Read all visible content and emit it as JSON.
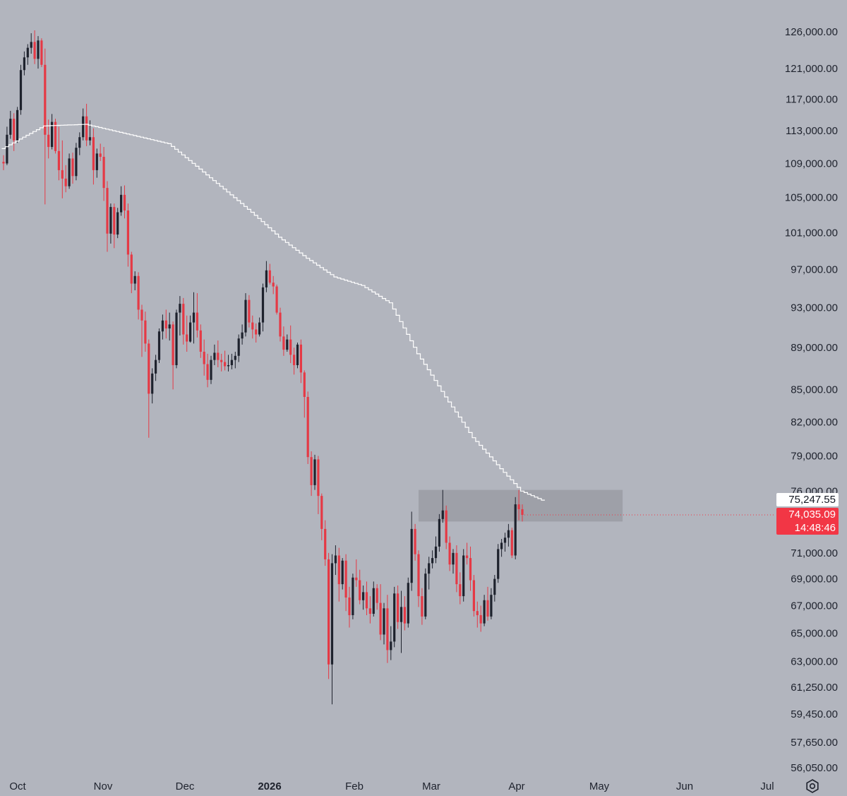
{
  "chart_data": {
    "type": "candlestick",
    "price_axis_labels": [
      "126,000.00",
      "121,000.00",
      "117,000.00",
      "113,000.00",
      "109,000.00",
      "105,000.00",
      "101,000.00",
      "97,000.00",
      "93,000.00",
      "89,000.00",
      "85,000.00",
      "82,000.00",
      "79,000.00",
      "76,000.00",
      "71,000.00",
      "69,000.00",
      "67,000.00",
      "65,000.00",
      "63,000.00",
      "61,250.00",
      "59,450.00",
      "57,650.00",
      "56,050.00"
    ],
    "price_axis_values": [
      126000,
      121000,
      117000,
      113000,
      109000,
      105000,
      101000,
      97000,
      93000,
      89000,
      85000,
      82000,
      79000,
      76000,
      71000,
      69000,
      67000,
      65000,
      63000,
      61250,
      59450,
      57650,
      56050
    ],
    "time_axis_labels": [
      "Oct",
      "Nov",
      "Dec",
      "2026",
      "Feb",
      "Mar",
      "Apr",
      "May",
      "Jun",
      "Jul"
    ],
    "time_axis_bold": [
      "2026"
    ],
    "x_range": [
      "2025-10-01",
      "2026-07-01"
    ],
    "y_scale": "log",
    "candles": [
      {
        "o": 109200,
        "h": 110000,
        "l": 108200,
        "c": 109000
      },
      {
        "o": 109000,
        "h": 113500,
        "l": 108800,
        "c": 112500
      },
      {
        "o": 112500,
        "h": 115500,
        "l": 112000,
        "c": 114500
      },
      {
        "o": 114500,
        "h": 115200,
        "l": 110500,
        "c": 111800
      },
      {
        "o": 111800,
        "h": 116000,
        "l": 111500,
        "c": 115600
      },
      {
        "o": 115600,
        "h": 121500,
        "l": 115000,
        "c": 120800
      },
      {
        "o": 120800,
        "h": 123300,
        "l": 120100,
        "c": 122500
      },
      {
        "o": 122500,
        "h": 124300,
        "l": 121500,
        "c": 123800
      },
      {
        "o": 123800,
        "h": 125800,
        "l": 123000,
        "c": 124600
      },
      {
        "o": 124600,
        "h": 126200,
        "l": 121600,
        "c": 122300
      },
      {
        "o": 122300,
        "h": 125400,
        "l": 121000,
        "c": 124800
      },
      {
        "o": 124800,
        "h": 125100,
        "l": 121200,
        "c": 121500
      },
      {
        "o": 121500,
        "h": 123700,
        "l": 104200,
        "c": 112500
      },
      {
        "o": 112500,
        "h": 114400,
        "l": 109600,
        "c": 111000
      },
      {
        "o": 111000,
        "h": 115100,
        "l": 110700,
        "c": 114100
      },
      {
        "o": 114100,
        "h": 114500,
        "l": 110200,
        "c": 110500
      },
      {
        "o": 110500,
        "h": 113500,
        "l": 107000,
        "c": 108200
      },
      {
        "o": 108200,
        "h": 111800,
        "l": 104900,
        "c": 107200
      },
      {
        "o": 107200,
        "h": 108800,
        "l": 105600,
        "c": 106300
      },
      {
        "o": 106300,
        "h": 110200,
        "l": 106000,
        "c": 109600
      },
      {
        "o": 109600,
        "h": 110300,
        "l": 106600,
        "c": 107500
      },
      {
        "o": 107500,
        "h": 111500,
        "l": 107000,
        "c": 110900
      },
      {
        "o": 110900,
        "h": 112800,
        "l": 110000,
        "c": 112200
      },
      {
        "o": 112200,
        "h": 115800,
        "l": 111800,
        "c": 114800
      },
      {
        "o": 114800,
        "h": 116400,
        "l": 111100,
        "c": 111800
      },
      {
        "o": 111800,
        "h": 114300,
        "l": 111200,
        "c": 112200
      },
      {
        "o": 112200,
        "h": 113300,
        "l": 106500,
        "c": 108200
      },
      {
        "o": 108200,
        "h": 110800,
        "l": 107300,
        "c": 110200
      },
      {
        "o": 110200,
        "h": 111400,
        "l": 109300,
        "c": 109800
      },
      {
        "o": 109800,
        "h": 111000,
        "l": 104600,
        "c": 106100
      },
      {
        "o": 106100,
        "h": 106900,
        "l": 98900,
        "c": 100900
      },
      {
        "o": 100900,
        "h": 104300,
        "l": 99800,
        "c": 103900
      },
      {
        "o": 103900,
        "h": 104300,
        "l": 99300,
        "c": 100800
      },
      {
        "o": 100800,
        "h": 103800,
        "l": 100400,
        "c": 103300
      },
      {
        "o": 103300,
        "h": 106300,
        "l": 102900,
        "c": 105300
      },
      {
        "o": 105300,
        "h": 106400,
        "l": 102600,
        "c": 103500
      },
      {
        "o": 103500,
        "h": 104300,
        "l": 97300,
        "c": 98600
      },
      {
        "o": 98600,
        "h": 98900,
        "l": 94500,
        "c": 95500
      },
      {
        "o": 95500,
        "h": 96800,
        "l": 94800,
        "c": 96300
      },
      {
        "o": 96300,
        "h": 96700,
        "l": 91800,
        "c": 92800
      },
      {
        "o": 92800,
        "h": 93300,
        "l": 88100,
        "c": 91700
      },
      {
        "o": 91700,
        "h": 92600,
        "l": 88600,
        "c": 89400
      },
      {
        "o": 89400,
        "h": 89800,
        "l": 80600,
        "c": 84600
      },
      {
        "o": 84600,
        "h": 87000,
        "l": 83700,
        "c": 86500
      },
      {
        "o": 86500,
        "h": 88300,
        "l": 85800,
        "c": 87800
      },
      {
        "o": 87800,
        "h": 90900,
        "l": 87500,
        "c": 90600
      },
      {
        "o": 90600,
        "h": 92300,
        "l": 89800,
        "c": 91700
      },
      {
        "o": 91700,
        "h": 92800,
        "l": 89900,
        "c": 90900
      },
      {
        "o": 90900,
        "h": 92500,
        "l": 89700,
        "c": 91300
      },
      {
        "o": 91300,
        "h": 91600,
        "l": 85000,
        "c": 87300
      },
      {
        "o": 87300,
        "h": 92800,
        "l": 87000,
        "c": 92500
      },
      {
        "o": 92500,
        "h": 94200,
        "l": 90200,
        "c": 93400
      },
      {
        "o": 93400,
        "h": 94000,
        "l": 89300,
        "c": 90300
      },
      {
        "o": 90300,
        "h": 92200,
        "l": 88600,
        "c": 89600
      },
      {
        "o": 89600,
        "h": 92200,
        "l": 89500,
        "c": 91500
      },
      {
        "o": 91500,
        "h": 94600,
        "l": 89400,
        "c": 92500
      },
      {
        "o": 92500,
        "h": 94500,
        "l": 90000,
        "c": 90700
      },
      {
        "o": 90700,
        "h": 91300,
        "l": 88000,
        "c": 88600
      },
      {
        "o": 88600,
        "h": 89800,
        "l": 86300,
        "c": 87400
      },
      {
        "o": 87400,
        "h": 88400,
        "l": 85200,
        "c": 85900
      },
      {
        "o": 85900,
        "h": 88200,
        "l": 85500,
        "c": 87800
      },
      {
        "o": 87800,
        "h": 89300,
        "l": 87300,
        "c": 88500
      },
      {
        "o": 88500,
        "h": 89700,
        "l": 87100,
        "c": 87800
      },
      {
        "o": 87800,
        "h": 88400,
        "l": 86700,
        "c": 87600
      },
      {
        "o": 87600,
        "h": 88700,
        "l": 86800,
        "c": 87200
      },
      {
        "o": 87200,
        "h": 88300,
        "l": 86700,
        "c": 87300
      },
      {
        "o": 87300,
        "h": 88400,
        "l": 86900,
        "c": 87800
      },
      {
        "o": 87800,
        "h": 88600,
        "l": 87000,
        "c": 88200
      },
      {
        "o": 88200,
        "h": 90300,
        "l": 87600,
        "c": 89900
      },
      {
        "o": 89900,
        "h": 91300,
        "l": 89300,
        "c": 90500
      },
      {
        "o": 90500,
        "h": 94500,
        "l": 90100,
        "c": 93800
      },
      {
        "o": 93800,
        "h": 94300,
        "l": 91000,
        "c": 91500
      },
      {
        "o": 91500,
        "h": 92200,
        "l": 89900,
        "c": 90800
      },
      {
        "o": 90800,
        "h": 91400,
        "l": 89500,
        "c": 90300
      },
      {
        "o": 90300,
        "h": 92000,
        "l": 90100,
        "c": 91500
      },
      {
        "o": 91500,
        "h": 95500,
        "l": 90600,
        "c": 95100
      },
      {
        "o": 95100,
        "h": 97900,
        "l": 94600,
        "c": 96900
      },
      {
        "o": 96900,
        "h": 97600,
        "l": 95400,
        "c": 95600
      },
      {
        "o": 95600,
        "h": 96300,
        "l": 94400,
        "c": 95200
      },
      {
        "o": 95200,
        "h": 95400,
        "l": 92300,
        "c": 92500
      },
      {
        "o": 92500,
        "h": 93000,
        "l": 89600,
        "c": 90100
      },
      {
        "o": 90100,
        "h": 91100,
        "l": 88200,
        "c": 88800
      },
      {
        "o": 88800,
        "h": 90300,
        "l": 88600,
        "c": 89800
      },
      {
        "o": 89800,
        "h": 91200,
        "l": 87500,
        "c": 88300
      },
      {
        "o": 88300,
        "h": 89000,
        "l": 86400,
        "c": 87300
      },
      {
        "o": 87300,
        "h": 89500,
        "l": 87000,
        "c": 89300
      },
      {
        "o": 89300,
        "h": 89800,
        "l": 85600,
        "c": 86600
      },
      {
        "o": 86600,
        "h": 86800,
        "l": 82400,
        "c": 84300
      },
      {
        "o": 84300,
        "h": 84800,
        "l": 78300,
        "c": 78900
      },
      {
        "o": 78900,
        "h": 79400,
        "l": 75600,
        "c": 76500
      },
      {
        "o": 76500,
        "h": 79100,
        "l": 76100,
        "c": 78700
      },
      {
        "o": 78700,
        "h": 79000,
        "l": 74100,
        "c": 75600
      },
      {
        "o": 75600,
        "h": 75800,
        "l": 72000,
        "c": 72900
      },
      {
        "o": 72900,
        "h": 73600,
        "l": 70000,
        "c": 70500
      },
      {
        "o": 70500,
        "h": 71000,
        "l": 61800,
        "c": 62800
      },
      {
        "o": 62800,
        "h": 70900,
        "l": 60100,
        "c": 70200
      },
      {
        "o": 70200,
        "h": 71600,
        "l": 69300,
        "c": 70800
      },
      {
        "o": 70800,
        "h": 71400,
        "l": 67300,
        "c": 68600
      },
      {
        "o": 68600,
        "h": 70600,
        "l": 68200,
        "c": 70400
      },
      {
        "o": 70400,
        "h": 70900,
        "l": 66600,
        "c": 67600
      },
      {
        "o": 67600,
        "h": 68400,
        "l": 65400,
        "c": 66300
      },
      {
        "o": 66300,
        "h": 69400,
        "l": 66000,
        "c": 69100
      },
      {
        "o": 69100,
        "h": 70500,
        "l": 68400,
        "c": 68900
      },
      {
        "o": 68900,
        "h": 69700,
        "l": 67100,
        "c": 67400
      },
      {
        "o": 67400,
        "h": 68500,
        "l": 66700,
        "c": 68000
      },
      {
        "o": 68000,
        "h": 68800,
        "l": 66300,
        "c": 66800
      },
      {
        "o": 66800,
        "h": 67700,
        "l": 65700,
        "c": 66400
      },
      {
        "o": 66400,
        "h": 68800,
        "l": 66200,
        "c": 68300
      },
      {
        "o": 68300,
        "h": 68600,
        "l": 66700,
        "c": 67200
      },
      {
        "o": 67200,
        "h": 68600,
        "l": 64500,
        "c": 64900
      },
      {
        "o": 64900,
        "h": 67200,
        "l": 64200,
        "c": 66800
      },
      {
        "o": 66800,
        "h": 67800,
        "l": 62900,
        "c": 63800
      },
      {
        "o": 63800,
        "h": 65500,
        "l": 63100,
        "c": 64400
      },
      {
        "o": 64400,
        "h": 68400,
        "l": 64000,
        "c": 67900
      },
      {
        "o": 67900,
        "h": 68500,
        "l": 65300,
        "c": 65800
      },
      {
        "o": 65800,
        "h": 68100,
        "l": 63600,
        "c": 66900
      },
      {
        "o": 66900,
        "h": 67700,
        "l": 65200,
        "c": 65700
      },
      {
        "o": 65700,
        "h": 69100,
        "l": 65400,
        "c": 68700
      },
      {
        "o": 68700,
        "h": 74300,
        "l": 68100,
        "c": 72900
      },
      {
        "o": 72900,
        "h": 73300,
        "l": 70400,
        "c": 70900
      },
      {
        "o": 70900,
        "h": 71200,
        "l": 66900,
        "c": 67700
      },
      {
        "o": 67700,
        "h": 68300,
        "l": 65600,
        "c": 66200
      },
      {
        "o": 66200,
        "h": 69800,
        "l": 66000,
        "c": 69400
      },
      {
        "o": 69400,
        "h": 70700,
        "l": 68200,
        "c": 70200
      },
      {
        "o": 70200,
        "h": 71200,
        "l": 69800,
        "c": 70600
      },
      {
        "o": 70600,
        "h": 72300,
        "l": 70200,
        "c": 71500
      },
      {
        "o": 71500,
        "h": 74100,
        "l": 71100,
        "c": 73700
      },
      {
        "o": 73700,
        "h": 76100,
        "l": 73400,
        "c": 74400
      },
      {
        "o": 74400,
        "h": 74800,
        "l": 71300,
        "c": 71800
      },
      {
        "o": 71800,
        "h": 72300,
        "l": 69600,
        "c": 70100
      },
      {
        "o": 70100,
        "h": 71300,
        "l": 69400,
        "c": 71000
      },
      {
        "o": 71000,
        "h": 71600,
        "l": 68000,
        "c": 68600
      },
      {
        "o": 68600,
        "h": 69500,
        "l": 67100,
        "c": 67700
      },
      {
        "o": 67700,
        "h": 71300,
        "l": 67300,
        "c": 70800
      },
      {
        "o": 70800,
        "h": 71800,
        "l": 70100,
        "c": 70600
      },
      {
        "o": 70600,
        "h": 71500,
        "l": 68100,
        "c": 68900
      },
      {
        "o": 68900,
        "h": 69300,
        "l": 66200,
        "c": 66600
      },
      {
        "o": 66600,
        "h": 67300,
        "l": 65400,
        "c": 66300
      },
      {
        "o": 66300,
        "h": 67000,
        "l": 65100,
        "c": 65700
      },
      {
        "o": 65700,
        "h": 67800,
        "l": 65500,
        "c": 67400
      },
      {
        "o": 67400,
        "h": 68400,
        "l": 65900,
        "c": 66200
      },
      {
        "o": 66200,
        "h": 68300,
        "l": 66000,
        "c": 67800
      },
      {
        "o": 67800,
        "h": 69300,
        "l": 67300,
        "c": 69000
      },
      {
        "o": 69000,
        "h": 71700,
        "l": 68700,
        "c": 71300
      },
      {
        "o": 71300,
        "h": 72100,
        "l": 70700,
        "c": 71800
      },
      {
        "o": 71800,
        "h": 72600,
        "l": 71100,
        "c": 72200
      },
      {
        "o": 72200,
        "h": 73300,
        "l": 71500,
        "c": 72800
      },
      {
        "o": 72800,
        "h": 73000,
        "l": 70600,
        "c": 70800
      },
      {
        "o": 70800,
        "h": 75500,
        "l": 70500,
        "c": 74900
      },
      {
        "o": 74900,
        "h": 76100,
        "l": 73600,
        "c": 74500
      },
      {
        "o": 74500,
        "h": 74900,
        "l": 73500,
        "c": 74035
      }
    ],
    "ma_line": {
      "x": [
        0,
        12,
        24,
        36,
        48,
        60,
        72,
        80,
        88,
        96,
        104,
        112,
        120,
        128,
        136,
        144,
        150,
        156
      ],
      "y": [
        110800,
        113600,
        113800,
        112600,
        111400,
        107300,
        103300,
        100500,
        98200,
        96200,
        95300,
        93500,
        88400,
        84300,
        80600,
        77900,
        76000,
        75250
      ]
    },
    "zone": {
      "from_bar": 120,
      "to_bar": 179,
      "high": 76100,
      "low": 73500
    },
    "ma_value_label": "75,247.55",
    "last_price_label": "74,035.09",
    "last_price": 74035,
    "countdown_label": "14:48:46",
    "colors": {
      "background": "#b2b5be",
      "up": "#1e222d",
      "down": "#e53945",
      "ma": "#ffffff",
      "zone": "#9a9ca4",
      "last_price_tag": "#f23645",
      "axis_text": "#1e222d"
    }
  },
  "settings_icon": "gear-icon"
}
